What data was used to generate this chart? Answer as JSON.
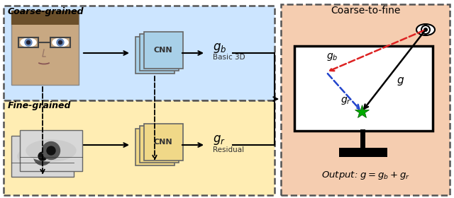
{
  "fig_width": 6.4,
  "fig_height": 2.8,
  "dpi": 100,
  "coarse_box_color": "#cce5ff",
  "fine_box_color": "#ffedb3",
  "output_box_color": "#f5cdb0",
  "coarse_label": "Coarse-grained",
  "fine_label": "Fine-grained",
  "output_title": "Coarse-to-fine",
  "output_label": "Output: $g = g_b + g_r$",
  "cnn_top_color": "#a8d0e8",
  "cnn_bot_color": "#f0d888",
  "gb_label": "$g_b$",
  "gb_sublabel": "Basic 3D",
  "gr_label": "$g_r$",
  "gr_sublabel": "Residual",
  "red_dash_color": "#dd2222",
  "blue_dash_color": "#2244cc",
  "star_color": "#00aa00",
  "screen_bg": "#ffffff",
  "box_edge_color": "#555555",
  "face_skin": "#c8a882",
  "face_hair": "#6b4f2a"
}
